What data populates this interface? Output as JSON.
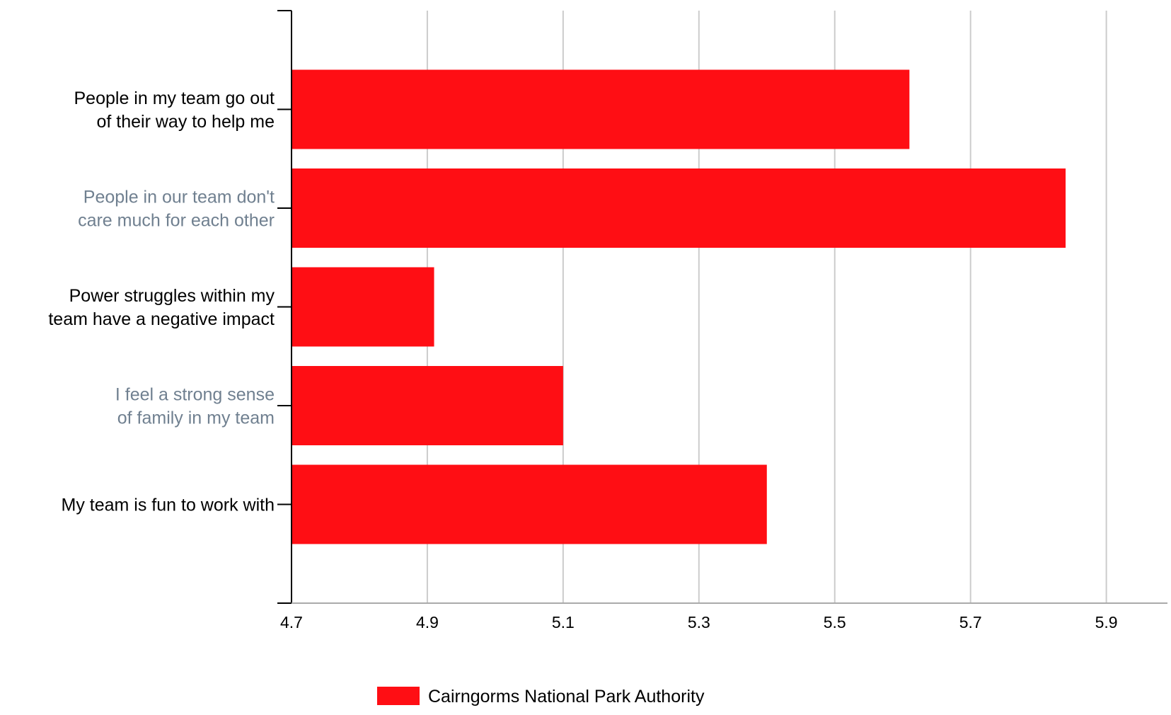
{
  "chart_data": {
    "type": "bar",
    "orientation": "horizontal",
    "categories": [
      {
        "lines": [
          "People in my team go out",
          "of their way to help me"
        ],
        "color": "#000000"
      },
      {
        "lines": [
          "People in our team don't",
          "care much for each other"
        ],
        "color": "#708090"
      },
      {
        "lines": [
          "Power struggles within my",
          "team have a negative impact"
        ],
        "color": "#000000"
      },
      {
        "lines": [
          "I feel a strong sense",
          "of family in my team"
        ],
        "color": "#708090"
      },
      {
        "lines": [
          "My team is fun to work with"
        ],
        "color": "#000000"
      }
    ],
    "series": [
      {
        "name": "Cairngorms National Park Authority",
        "color": "#ff0e14",
        "values": [
          5.61,
          5.84,
          4.91,
          5.1,
          5.4
        ]
      }
    ],
    "xlim": [
      4.7,
      5.99
    ],
    "xticks": [
      "4.7",
      "4.9",
      "5.1",
      "5.3",
      "5.5",
      "5.7",
      "5.9"
    ],
    "grid": true,
    "legend_position": "bottom"
  }
}
